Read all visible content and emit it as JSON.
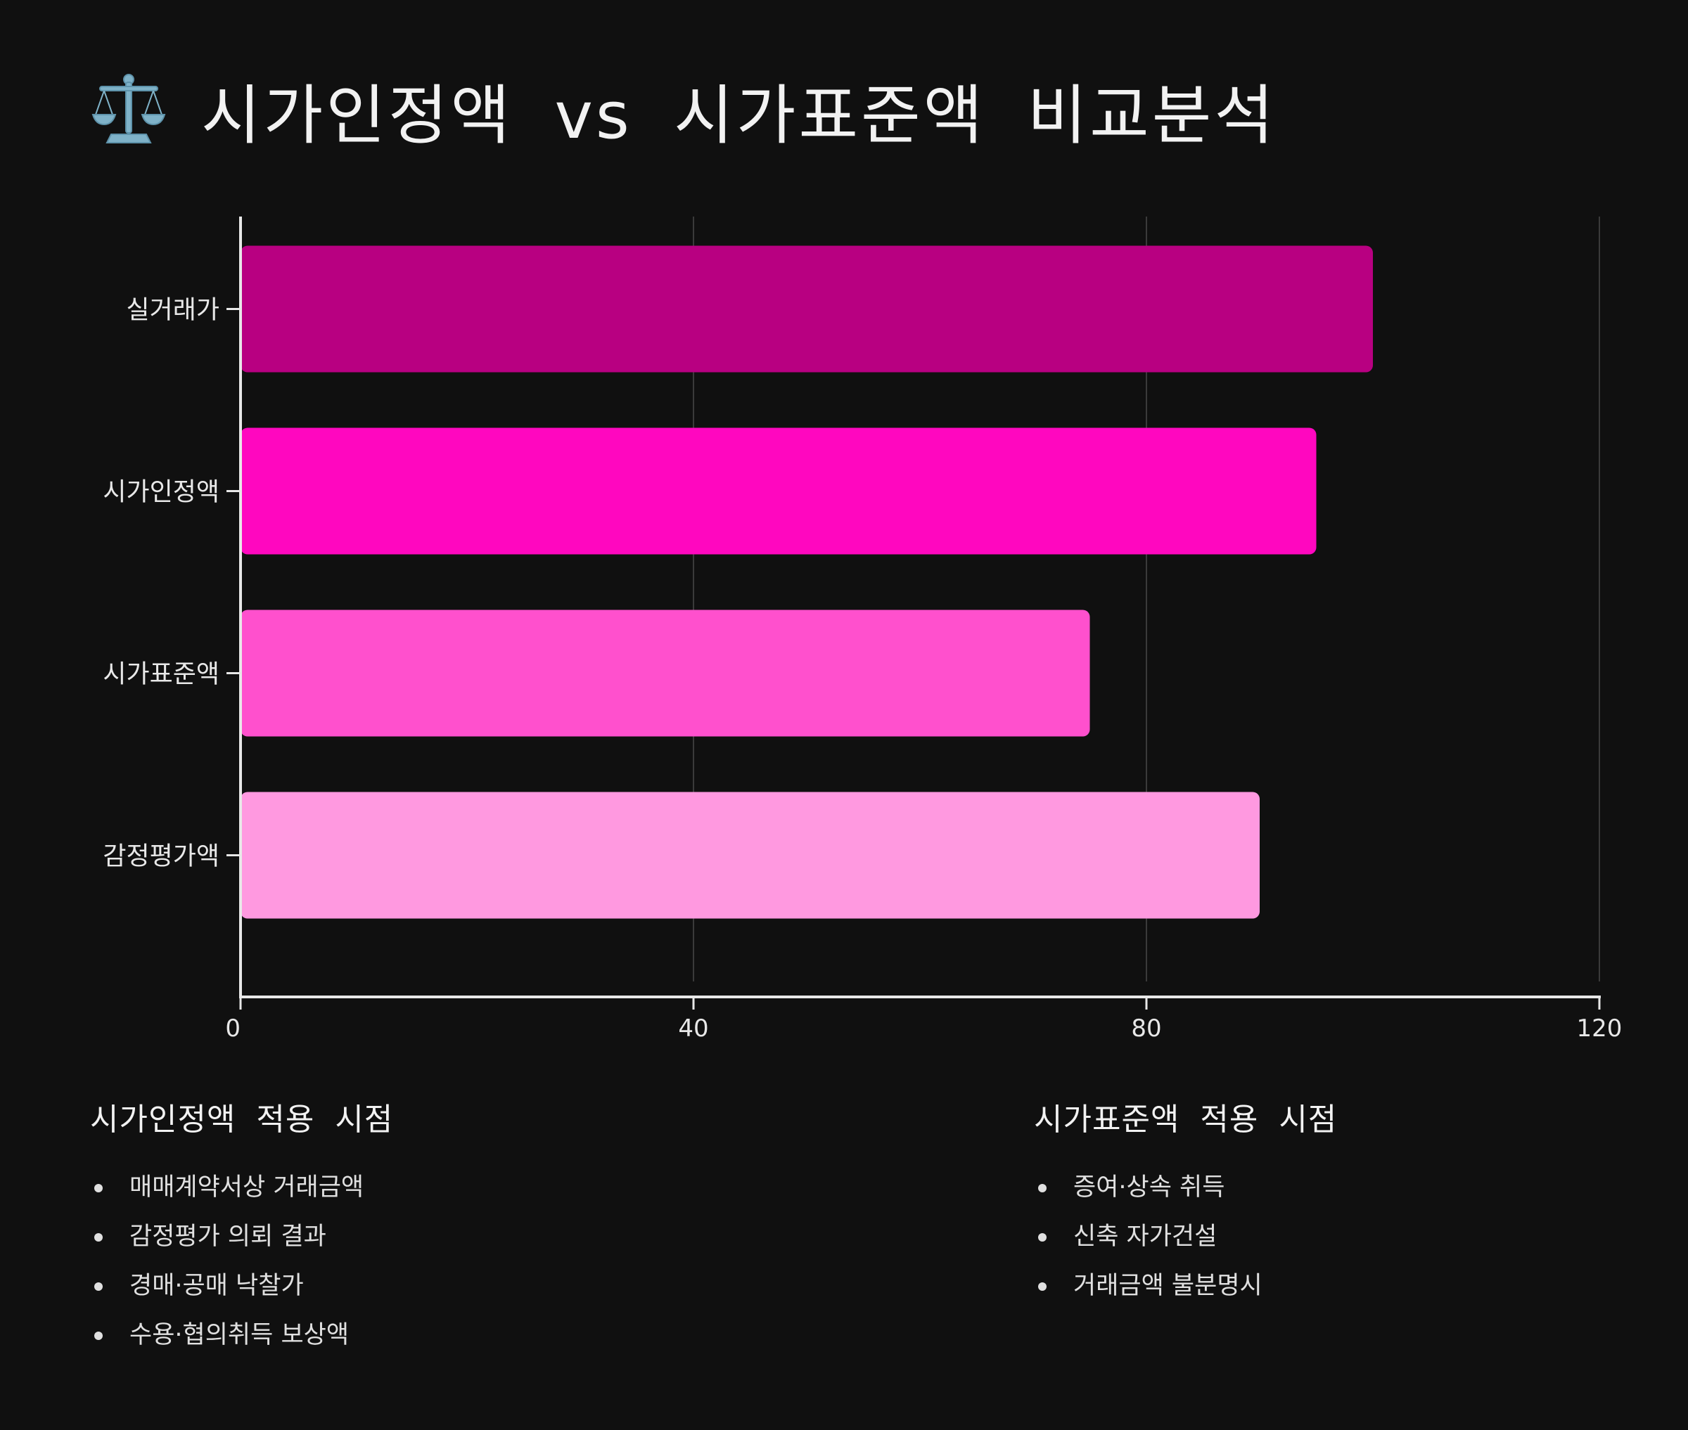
{
  "header": {
    "icon": "balance-scale-icon",
    "title": "시가인정액 vs 시가표준액 비교분석"
  },
  "chart_data": {
    "type": "bar",
    "orientation": "horizontal",
    "categories": [
      "실거래가",
      "시가인정액",
      "시가표준액",
      "감정평가액"
    ],
    "values": [
      100,
      95,
      75,
      90
    ],
    "colors": [
      "#b80081",
      "#ff07bf",
      "#ff50cd",
      "#ff99e0"
    ],
    "xlim": [
      0,
      120
    ],
    "xticks": [
      "0",
      "40",
      "80",
      "120"
    ],
    "grid": true,
    "title": "",
    "xlabel": "",
    "ylabel": ""
  },
  "notes": {
    "left": {
      "title": "시가인정액 적용 시점",
      "items": [
        "매매계약서상 거래금액",
        "감정평가 의뢰 결과",
        "경매·공매 낙찰가",
        "수용·협의취득 보상액"
      ]
    },
    "right": {
      "title": "시가표준액 적용 시점",
      "items": [
        "증여·상속 취득",
        "신축 자가건설",
        "거래금액 불분명시"
      ]
    }
  }
}
